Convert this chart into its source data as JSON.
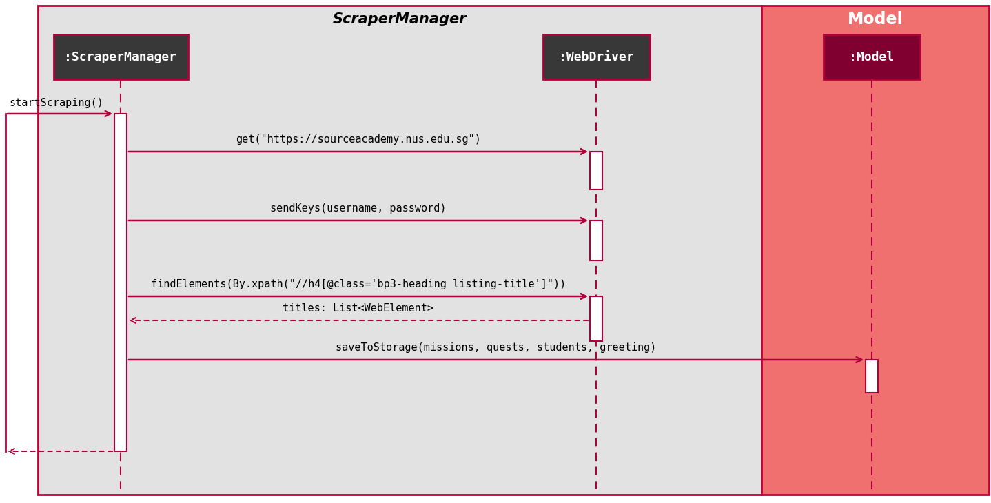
{
  "title_scraper_manager": "ScraperManager",
  "title_model": "Model",
  "actor_scraper_manager": ":ScraperManager",
  "actor_webdriver": ":WebDriver",
  "actor_model": ":Model",
  "bg_light_gray": "#e2e2e2",
  "bg_model_panel": "#f07070",
  "actor_box_dark": "#383838",
  "actor_box_model_dark": "#800030",
  "actor_text_color": "#ffffff",
  "lifeline_color": "#b0003a",
  "activation_color": "#ffffff",
  "arrow_color": "#b0003a",
  "border_color": "#b0003a",
  "panel_border_color": "#c0003a",
  "msg1": "startScraping()",
  "msg2": "get(\"https://sourceacademy.nus.edu.sg\")",
  "msg3": "sendKeys(username, password)",
  "msg4": "findElements(By.xpath(\"//h4[@class='bp3-heading listing-title']\"))",
  "msg5": "titles: List<WebElement>",
  "msg6": "saveToStorage(missions, quests, students, greeting)"
}
